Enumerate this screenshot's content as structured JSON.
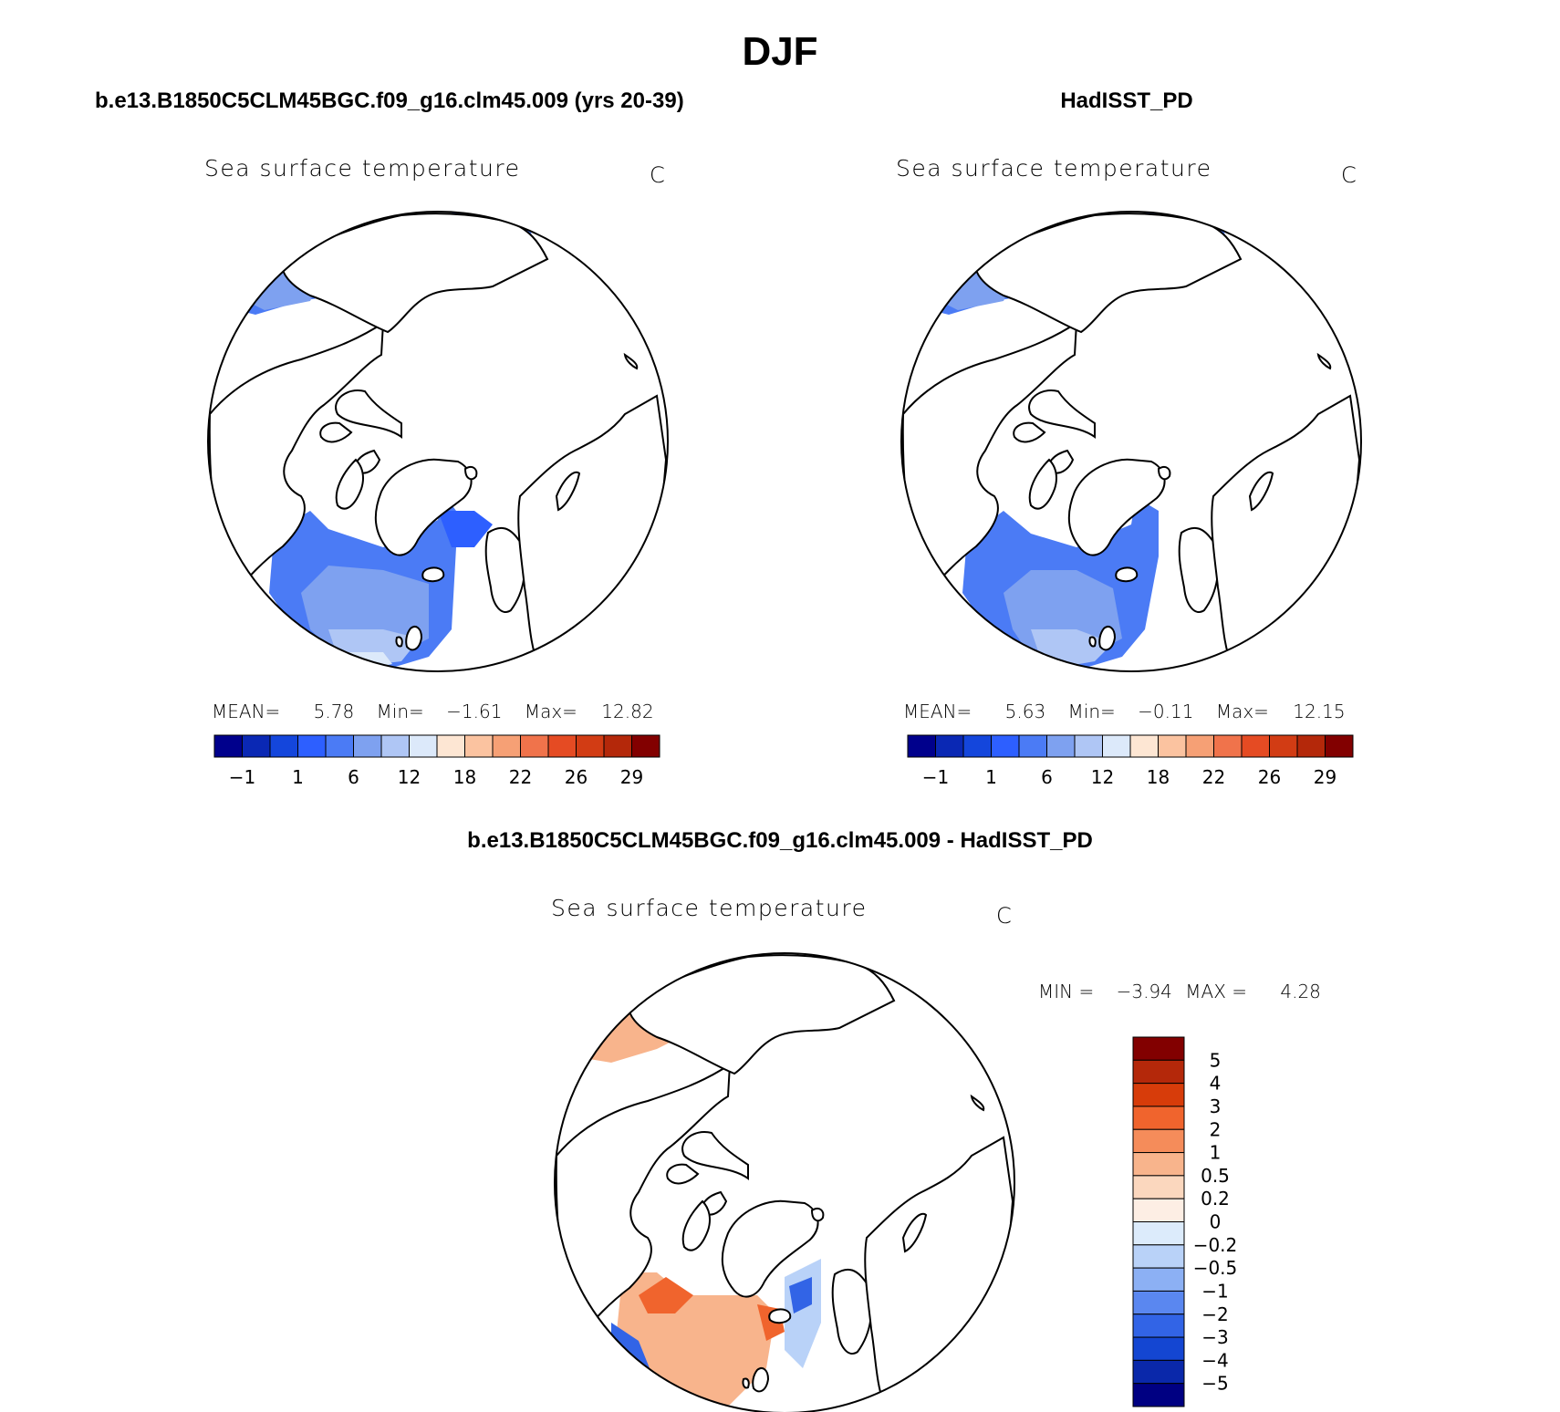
{
  "page_title": "DJF",
  "chart_data": [
    {
      "type": "heatmap",
      "title": "b.e13.B1850C5CLM45BGC.f09_g16.clm45.009 (yrs 20-39)",
      "subtitle": "Sea surface temperature",
      "units": "C",
      "projection": "north-polar-stereographic",
      "stats": {
        "mean_label": "MEAN=",
        "mean": "5.78",
        "min_label": "Min=",
        "min": "−1.61",
        "max_label": "Max=",
        "max": "12.82"
      },
      "colorbar": {
        "orientation": "horizontal",
        "tick_labels": [
          "−1",
          "1",
          "6",
          "12",
          "18",
          "22",
          "26",
          "29"
        ],
        "colors": [
          "#00008c",
          "#0a28b4",
          "#1446dc",
          "#2d5fff",
          "#4b7bf5",
          "#7ea1f0",
          "#afc6f5",
          "#dce9fa",
          "#fde6d3",
          "#fbc3a0",
          "#f6a075",
          "#f0734b",
          "#e54b23",
          "#d23c14",
          "#b4280a",
          "#820000"
        ]
      }
    },
    {
      "type": "heatmap",
      "title": "HadISST_PD",
      "subtitle": "Sea surface temperature",
      "units": "C",
      "projection": "north-polar-stereographic",
      "stats": {
        "mean_label": "MEAN=",
        "mean": "5.63",
        "min_label": "Min=",
        "min": "−0.11",
        "max_label": "Max=",
        "max": "12.15"
      },
      "colorbar": {
        "orientation": "horizontal",
        "tick_labels": [
          "−1",
          "1",
          "6",
          "12",
          "18",
          "22",
          "26",
          "29"
        ],
        "colors": [
          "#00008c",
          "#0a28b4",
          "#1446dc",
          "#2d5fff",
          "#4b7bf5",
          "#7ea1f0",
          "#afc6f5",
          "#dce9fa",
          "#fde6d3",
          "#fbc3a0",
          "#f6a075",
          "#f0734b",
          "#e54b23",
          "#d23c14",
          "#b4280a",
          "#820000"
        ]
      }
    },
    {
      "type": "heatmap",
      "title": "b.e13.B1850C5CLM45BGC.f09_g16.clm45.009 - HadISST_PD",
      "subtitle": "Sea surface temperature",
      "units": "C",
      "projection": "north-polar-stereographic",
      "stats": {
        "min_label": "MIN =",
        "min": "−3.94",
        "max_label": "MAX =",
        "max": "4.28"
      },
      "colorbar": {
        "orientation": "vertical",
        "tick_labels": [
          "5",
          "4",
          "3",
          "2",
          "1",
          "0.5",
          "0.2",
          "0",
          "−0.2",
          "−0.5",
          "−1",
          "−2",
          "−3",
          "−4",
          "−5"
        ],
        "colors": [
          "#820000",
          "#b4280a",
          "#d73c0a",
          "#f0642d",
          "#f58c5a",
          "#f8b48c",
          "#fbd7be",
          "#fdeee4",
          "#dcebfb",
          "#b9d2f8",
          "#8cb0f4",
          "#5a87f0",
          "#3264e6",
          "#1446d2",
          "#0a28aa",
          "#000082"
        ]
      }
    }
  ]
}
